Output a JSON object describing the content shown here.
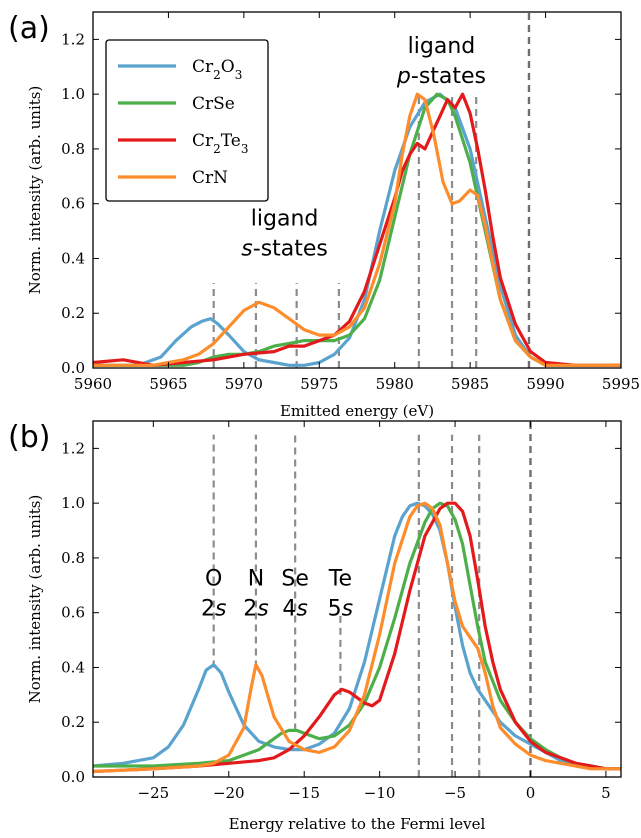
{
  "chart_data": [
    {
      "panel_label": "(a)",
      "type": "line",
      "xlabel": "Emitted energy (eV)",
      "ylabel": "Norm. intensity (arb. units)",
      "xlim": [
        5960,
        5995
      ],
      "ylim": [
        0,
        1.3
      ],
      "xticks": [
        5960,
        5965,
        5970,
        5975,
        5980,
        5985,
        5990,
        5995
      ],
      "yticks": [
        0.0,
        0.2,
        0.4,
        0.6,
        0.8,
        1.0,
        1.2
      ],
      "legend": {
        "placement": "top-left",
        "entries": [
          "Cr2O3",
          "CrSe",
          "Cr2Te3",
          "CrN"
        ]
      },
      "annotations": [
        {
          "lines": [
            "ligand",
            "s-states"
          ],
          "x": 5972.7,
          "y": 0.52
        },
        {
          "lines": [
            "ligand",
            "p-states"
          ],
          "x": 5983.1,
          "y": 1.15
        }
      ],
      "vlines": [
        5968.0,
        5970.8,
        5973.5,
        5976.3,
        5981.6,
        5983.8,
        5985.4,
        5988.9
      ],
      "vlines_ymax": [
        0.31,
        0.31,
        0.31,
        0.31,
        1.0,
        1.0,
        1.0,
        1.3
      ],
      "series": [
        {
          "name": "Cr2O3",
          "color": "#5ba3cf",
          "x": [
            5960,
            5963,
            5964.5,
            5965.5,
            5966.5,
            5967.2,
            5967.8,
            5968.3,
            5969,
            5970,
            5971,
            5972,
            5973,
            5974,
            5975,
            5976,
            5977,
            5978,
            5979,
            5980,
            5981,
            5982,
            5983,
            5984,
            5985,
            5986,
            5987,
            5988,
            5989,
            5990,
            5992,
            5995
          ],
          "y": [
            0.01,
            0.01,
            0.04,
            0.1,
            0.15,
            0.17,
            0.18,
            0.16,
            0.12,
            0.06,
            0.03,
            0.02,
            0.01,
            0.01,
            0.02,
            0.05,
            0.11,
            0.25,
            0.5,
            0.72,
            0.88,
            0.97,
            1.0,
            0.95,
            0.8,
            0.55,
            0.3,
            0.12,
            0.04,
            0.01,
            0.01,
            0.01
          ]
        },
        {
          "name": "CrSe",
          "color": "#4daf4a",
          "x": [
            5960,
            5965,
            5966,
            5967,
            5968,
            5969,
            5970,
            5971,
            5972,
            5973,
            5974,
            5975,
            5976,
            5977,
            5978,
            5979,
            5980,
            5981,
            5982,
            5982.8,
            5983.5,
            5984,
            5985,
            5986,
            5987,
            5988,
            5989,
            5990,
            5992,
            5995
          ],
          "y": [
            0.01,
            0.01,
            0.01,
            0.02,
            0.04,
            0.05,
            0.05,
            0.06,
            0.08,
            0.09,
            0.1,
            0.1,
            0.1,
            0.12,
            0.18,
            0.32,
            0.55,
            0.78,
            0.95,
            1.0,
            0.98,
            0.92,
            0.75,
            0.5,
            0.25,
            0.1,
            0.04,
            0.01,
            0.01,
            0.01
          ]
        },
        {
          "name": "Cr2Te3",
          "color": "#e31a1c",
          "x": [
            5960,
            5962,
            5964,
            5966,
            5968,
            5970,
            5972,
            5973,
            5974,
            5975,
            5976,
            5977,
            5978,
            5979,
            5980,
            5980.5,
            5981,
            5981.5,
            5982,
            5982.5,
            5983,
            5983.5,
            5984,
            5984.5,
            5985,
            5985.5,
            5986,
            5986.5,
            5987,
            5988,
            5989,
            5990,
            5992,
            5995
          ],
          "y": [
            0.02,
            0.03,
            0.01,
            0.02,
            0.03,
            0.05,
            0.06,
            0.08,
            0.08,
            0.1,
            0.12,
            0.17,
            0.28,
            0.45,
            0.62,
            0.72,
            0.78,
            0.82,
            0.8,
            0.86,
            0.92,
            0.98,
            0.95,
            1.0,
            0.93,
            0.8,
            0.65,
            0.48,
            0.33,
            0.16,
            0.06,
            0.02,
            0.01,
            0.01
          ]
        },
        {
          "name": "CrN",
          "color": "#fd8d2c",
          "x": [
            5960,
            5964,
            5965,
            5966,
            5967,
            5968,
            5969,
            5970,
            5971,
            5972,
            5973,
            5974,
            5975,
            5976,
            5977,
            5978,
            5979,
            5980,
            5980.5,
            5981,
            5981.5,
            5982,
            5982.6,
            5983.2,
            5983.8,
            5984.3,
            5985,
            5985.5,
            5986,
            5986.5,
            5987,
            5988,
            5989,
            5990,
            5992,
            5995
          ],
          "y": [
            0.01,
            0.01,
            0.02,
            0.03,
            0.05,
            0.09,
            0.15,
            0.21,
            0.24,
            0.22,
            0.18,
            0.14,
            0.12,
            0.12,
            0.15,
            0.22,
            0.38,
            0.6,
            0.78,
            0.92,
            1.0,
            0.98,
            0.85,
            0.68,
            0.6,
            0.61,
            0.65,
            0.63,
            0.52,
            0.38,
            0.25,
            0.1,
            0.04,
            0.01,
            0.01,
            0.01
          ]
        }
      ]
    },
    {
      "panel_label": "(b)",
      "type": "line",
      "xlabel": "Energy relative to the Fermi level",
      "ylabel": "Norm. intensity (arb. units)",
      "xlim": [
        -29,
        6
      ],
      "ylim": [
        0,
        1.3
      ],
      "xticks": [
        -25,
        -20,
        -15,
        -10,
        -5,
        0,
        5
      ],
      "yticks": [
        0.0,
        0.2,
        0.4,
        0.6,
        0.8,
        1.0,
        1.2
      ],
      "annotations": [
        {
          "lines": [
            "O",
            "2s"
          ],
          "x": -21.0,
          "y": 0.7
        },
        {
          "lines": [
            "N",
            "2s"
          ],
          "x": -18.2,
          "y": 0.7
        },
        {
          "lines": [
            "Se",
            "4s"
          ],
          "x": -15.6,
          "y": 0.7
        },
        {
          "lines": [
            "Te",
            "5s"
          ],
          "x": -12.6,
          "y": 0.7
        }
      ],
      "vlines": [
        -21.0,
        -18.2,
        -15.6,
        -12.6,
        -7.4,
        -5.2,
        -3.4,
        0.0
      ],
      "vlines_ymin": [
        0.4,
        0.4,
        0.17,
        0.3,
        0.0,
        0.0,
        0.0,
        0.0
      ],
      "vlines_ymax": [
        1.25,
        1.25,
        1.25,
        0.6,
        1.25,
        1.25,
        1.25,
        1.3
      ],
      "series": [
        {
          "name": "Cr2O3",
          "color": "#5ba3cf",
          "x": [
            -29,
            -27,
            -25,
            -24,
            -23,
            -22,
            -21.5,
            -21,
            -20.5,
            -20,
            -19,
            -18,
            -17,
            -16,
            -15,
            -14,
            -13,
            -12,
            -11,
            -10,
            -9,
            -8.5,
            -8,
            -7.5,
            -7,
            -6.5,
            -6,
            -5.5,
            -5,
            -4.5,
            -4,
            -3.5,
            -3,
            -2,
            -1,
            0,
            1,
            2,
            3,
            4,
            5,
            6
          ],
          "y": [
            0.04,
            0.05,
            0.07,
            0.11,
            0.19,
            0.32,
            0.39,
            0.41,
            0.38,
            0.31,
            0.19,
            0.13,
            0.11,
            0.1,
            0.1,
            0.12,
            0.16,
            0.25,
            0.42,
            0.65,
            0.88,
            0.95,
            0.99,
            1.0,
            0.99,
            0.96,
            0.9,
            0.78,
            0.62,
            0.48,
            0.38,
            0.32,
            0.28,
            0.2,
            0.15,
            0.12,
            0.09,
            0.06,
            0.05,
            0.04,
            0.03,
            0.03
          ]
        },
        {
          "name": "CrSe",
          "color": "#4daf4a",
          "x": [
            -29,
            -25,
            -22,
            -20,
            -19,
            -18,
            -17,
            -16.5,
            -16,
            -15.5,
            -15,
            -14,
            -13,
            -12,
            -11,
            -10,
            -9,
            -8,
            -7,
            -6.5,
            -6,
            -5.5,
            -5,
            -4.5,
            -4,
            -3.5,
            -3,
            -2,
            -1,
            0,
            1,
            2,
            3,
            4,
            5,
            6
          ],
          "y": [
            0.04,
            0.04,
            0.05,
            0.06,
            0.08,
            0.1,
            0.14,
            0.16,
            0.17,
            0.17,
            0.16,
            0.14,
            0.15,
            0.19,
            0.27,
            0.4,
            0.58,
            0.78,
            0.93,
            0.98,
            1.0,
            0.99,
            0.94,
            0.85,
            0.7,
            0.55,
            0.42,
            0.28,
            0.2,
            0.14,
            0.1,
            0.07,
            0.05,
            0.04,
            0.03,
            0.03
          ]
        },
        {
          "name": "Cr2Te3",
          "color": "#e31a1c",
          "x": [
            -29,
            -25,
            -22,
            -20,
            -18,
            -17,
            -16,
            -15,
            -14,
            -13,
            -12.5,
            -12,
            -11,
            -10.5,
            -10,
            -9,
            -8,
            -7,
            -6,
            -5.5,
            -5,
            -4.5,
            -4,
            -3.5,
            -3,
            -2.5,
            -2,
            -1,
            0,
            1,
            2,
            3,
            4,
            5,
            6
          ],
          "y": [
            0.02,
            0.03,
            0.04,
            0.05,
            0.06,
            0.07,
            0.1,
            0.15,
            0.22,
            0.3,
            0.32,
            0.31,
            0.27,
            0.26,
            0.28,
            0.45,
            0.68,
            0.88,
            0.98,
            1.0,
            1.0,
            0.97,
            0.88,
            0.72,
            0.55,
            0.42,
            0.32,
            0.2,
            0.13,
            0.09,
            0.07,
            0.05,
            0.04,
            0.03,
            0.03
          ]
        },
        {
          "name": "CrN",
          "color": "#fd8d2c",
          "x": [
            -29,
            -25,
            -22,
            -21,
            -20,
            -19,
            -18.5,
            -18.2,
            -17.8,
            -17,
            -16,
            -15,
            -14,
            -13,
            -12,
            -11,
            -10,
            -9,
            -8,
            -7.5,
            -7,
            -6.5,
            -6,
            -5.5,
            -5,
            -4.5,
            -4,
            -3.5,
            -3,
            -2.5,
            -2,
            -1,
            0,
            1,
            2,
            3,
            4,
            5,
            6
          ],
          "y": [
            0.02,
            0.03,
            0.04,
            0.05,
            0.08,
            0.18,
            0.33,
            0.41,
            0.37,
            0.22,
            0.13,
            0.1,
            0.09,
            0.11,
            0.17,
            0.3,
            0.52,
            0.78,
            0.95,
            0.99,
            1.0,
            0.98,
            0.92,
            0.78,
            0.64,
            0.55,
            0.51,
            0.47,
            0.38,
            0.26,
            0.18,
            0.12,
            0.08,
            0.06,
            0.05,
            0.04,
            0.03,
            0.03,
            0.03
          ]
        }
      ]
    }
  ]
}
